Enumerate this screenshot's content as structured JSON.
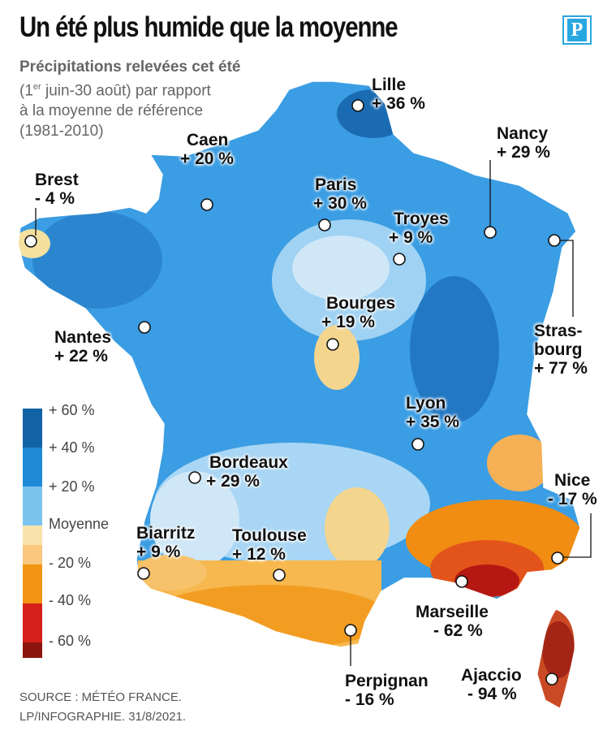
{
  "title": "Un été plus humide que la moyenne",
  "logo": "P",
  "subtitle": {
    "bold_line": "Précipitations relevées cet été",
    "line2_pre": "(1",
    "line2_sup": "er",
    "line2_post": " juin-30 août) par rapport",
    "line3": "à la moyenne de référence",
    "line4": "(1981-2010)"
  },
  "legend": [
    {
      "label": "+ 60 %",
      "color": "#1263a6"
    },
    {
      "label": "+ 40 %",
      "color": "#1f8ad6"
    },
    {
      "label": "+ 20 %",
      "color": "#7cc4f0"
    },
    {
      "label": "Moyenne",
      "color": "#dcecf7"
    },
    {
      "label": "- 20 %",
      "color": "#f9c77d"
    },
    {
      "label": "- 40 %",
      "color": "#f29513"
    },
    {
      "label": "- 60 %",
      "color": "#d51f1a"
    },
    {
      "label": "",
      "color": "#8c1410"
    }
  ],
  "cities": [
    {
      "name": "Lille",
      "value": "+ 36 %"
    },
    {
      "name": "Caen",
      "value": "+ 20 %"
    },
    {
      "name": "Nancy",
      "value": "+ 29 %"
    },
    {
      "name": "Brest",
      "value": "- 4 %"
    },
    {
      "name": "Paris",
      "value": "+ 30 %"
    },
    {
      "name": "Troyes",
      "value": "+ 9 %"
    },
    {
      "name": "Strasbourg",
      "name_line1": "Stras-",
      "name_line2": "bourg",
      "value": "+ 77 %"
    },
    {
      "name": "Bourges",
      "value": "+ 19 %"
    },
    {
      "name": "Nantes",
      "value": "+ 22 %"
    },
    {
      "name": "Lyon",
      "value": "+ 35 %"
    },
    {
      "name": "Bordeaux",
      "value": "+ 29 %"
    },
    {
      "name": "Nice",
      "value": "- 17 %"
    },
    {
      "name": "Biarritz",
      "value": "+ 9 %"
    },
    {
      "name": "Toulouse",
      "value": "+ 12 %"
    },
    {
      "name": "Marseille",
      "value": "- 62 %"
    },
    {
      "name": "Perpignan",
      "value": "- 16 %"
    },
    {
      "name": "Ajaccio",
      "value": "- 94 %"
    }
  ],
  "source": {
    "line1": "SOURCE : MÉTÉO FRANCE.",
    "line2": "LP/INFOGRAPHIE.  31/8/2021."
  }
}
